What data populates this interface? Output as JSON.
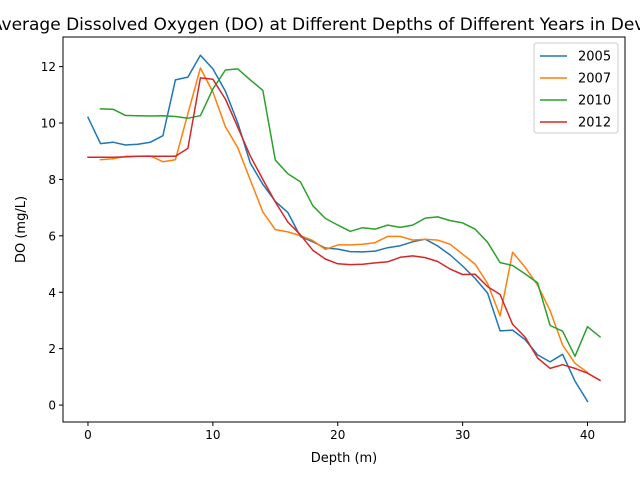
{
  "chart_data": {
    "type": "line",
    "title": "Average Dissolved Oxygen (DO) at Different Depths of Different Years in Devi",
    "xlabel": "Depth (m)",
    "ylabel": "DO (mg/L)",
    "xlim": [
      -2,
      43
    ],
    "ylim": [
      -0.6,
      13.05
    ],
    "xticks": [
      0,
      10,
      20,
      30,
      40
    ],
    "yticks": [
      0,
      2,
      4,
      6,
      8,
      10,
      12
    ],
    "grid": false,
    "legend_position": "top-right",
    "series": [
      {
        "name": "2005",
        "color": "#1f77b4",
        "x": [
          0,
          1,
          2,
          3,
          4,
          5,
          6,
          7,
          8,
          9,
          10,
          11,
          12,
          13,
          14,
          15,
          16,
          17,
          18,
          19,
          20,
          21,
          22,
          23,
          24,
          25,
          26,
          27,
          28,
          29,
          30,
          31,
          32,
          33,
          34,
          35,
          36,
          37,
          38,
          39,
          40
        ],
        "y": [
          10.2,
          9.27,
          9.32,
          9.22,
          9.25,
          9.32,
          9.55,
          11.53,
          11.63,
          12.4,
          11.92,
          11.13,
          10.0,
          8.58,
          7.83,
          7.22,
          6.83,
          5.98,
          5.79,
          5.57,
          5.53,
          5.44,
          5.43,
          5.46,
          5.58,
          5.65,
          5.79,
          5.88,
          5.64,
          5.32,
          4.93,
          4.49,
          3.97,
          2.63,
          2.66,
          2.32,
          1.78,
          1.53,
          1.8,
          0.85,
          0.13
        ]
      },
      {
        "name": "2007",
        "color": "#ff7f0e",
        "x": [
          1,
          2,
          3,
          4,
          5,
          6,
          7,
          8,
          9,
          10,
          11,
          12,
          13,
          14,
          15,
          16,
          17,
          18,
          19,
          20,
          21,
          22,
          23,
          24,
          25,
          26,
          27,
          28,
          29,
          30,
          31,
          32,
          33,
          34,
          35,
          36,
          37,
          38,
          39,
          40
        ],
        "y": [
          8.7,
          8.73,
          8.82,
          8.82,
          8.83,
          8.63,
          8.7,
          10.33,
          11.95,
          11.1,
          9.87,
          9.12,
          7.98,
          6.85,
          6.22,
          6.14,
          6.01,
          5.83,
          5.52,
          5.68,
          5.68,
          5.7,
          5.76,
          5.98,
          5.98,
          5.85,
          5.88,
          5.85,
          5.7,
          5.35,
          5.0,
          4.31,
          3.16,
          5.42,
          4.89,
          4.25,
          3.35,
          2.13,
          1.48,
          1.16
        ]
      },
      {
        "name": "2010",
        "color": "#2ca02c",
        "x": [
          1,
          2,
          3,
          4,
          5,
          6,
          7,
          8,
          9,
          10,
          11,
          12,
          13,
          14,
          15,
          16,
          17,
          18,
          19,
          20,
          21,
          22,
          23,
          24,
          25,
          26,
          27,
          28,
          29,
          30,
          31,
          32,
          33,
          34,
          35,
          36,
          37,
          38,
          39,
          40,
          41
        ],
        "y": [
          10.5,
          10.49,
          10.27,
          10.26,
          10.25,
          10.26,
          10.23,
          10.17,
          10.26,
          11.21,
          11.88,
          11.92,
          11.53,
          11.16,
          8.69,
          8.2,
          7.92,
          7.07,
          6.62,
          6.38,
          6.16,
          6.29,
          6.24,
          6.38,
          6.3,
          6.38,
          6.63,
          6.67,
          6.54,
          6.46,
          6.24,
          5.77,
          5.05,
          4.95,
          4.65,
          4.33,
          2.82,
          2.62,
          1.73,
          2.78,
          2.42
        ]
      },
      {
        "name": "2012",
        "color": "#d62728",
        "x": [
          0,
          1,
          2,
          3,
          4,
          5,
          6,
          7,
          8,
          9,
          10,
          11,
          12,
          13,
          14,
          15,
          16,
          17,
          18,
          19,
          20,
          21,
          22,
          23,
          24,
          25,
          26,
          27,
          28,
          29,
          30,
          31,
          32,
          33,
          34,
          35,
          36,
          37,
          38,
          39,
          40,
          41
        ],
        "y": [
          8.79,
          8.79,
          8.79,
          8.8,
          8.82,
          8.82,
          8.82,
          8.82,
          9.1,
          11.6,
          11.55,
          10.85,
          9.85,
          8.83,
          8.0,
          7.2,
          6.49,
          6.04,
          5.49,
          5.18,
          5.01,
          4.98,
          4.99,
          5.04,
          5.08,
          5.24,
          5.29,
          5.23,
          5.09,
          4.82,
          4.63,
          4.64,
          4.2,
          3.92,
          2.86,
          2.41,
          1.67,
          1.3,
          1.43,
          1.3,
          1.13,
          0.88
        ]
      }
    ]
  }
}
